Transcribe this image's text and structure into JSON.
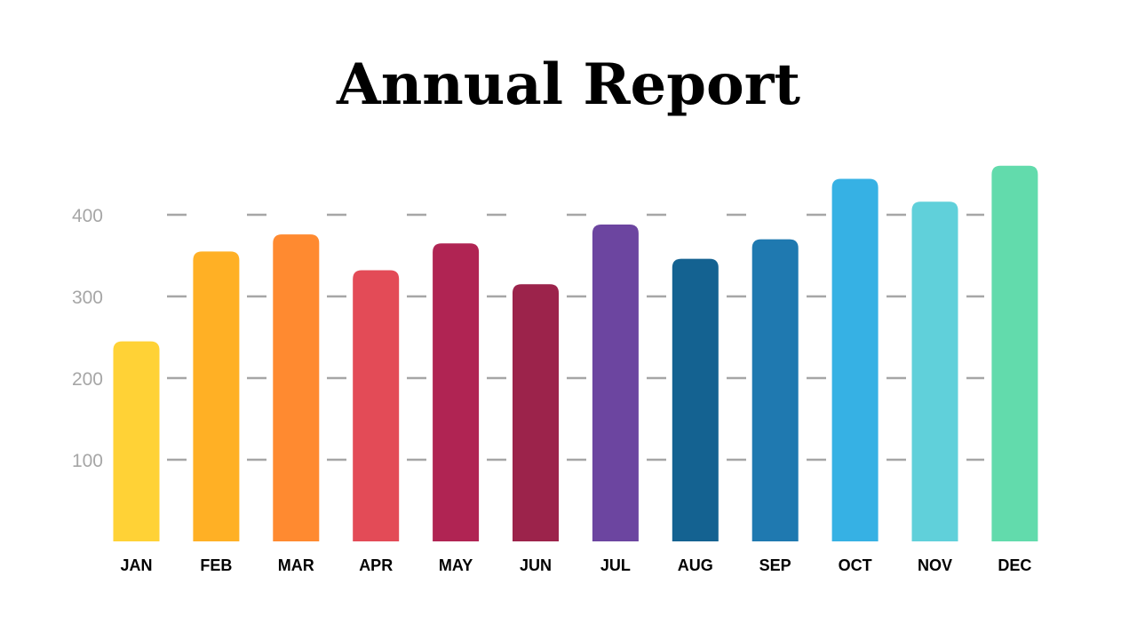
{
  "title": "Annual Report",
  "chart_data": {
    "type": "bar",
    "title": "Annual Report",
    "xlabel": "",
    "ylabel": "",
    "categories": [
      "JAN",
      "FEB",
      "MAR",
      "APR",
      "MAY",
      "JUN",
      "JUL",
      "AUG",
      "SEP",
      "OCT",
      "NOV",
      "DEC"
    ],
    "values": [
      245,
      355,
      376,
      332,
      365,
      315,
      388,
      346,
      370,
      444,
      416,
      460
    ],
    "colors": [
      "#ffd236",
      "#ffb025",
      "#ff8a30",
      "#e34b57",
      "#b02453",
      "#9c234b",
      "#6c45a0",
      "#146291",
      "#1f79b0",
      "#36b1e4",
      "#60d0da",
      "#62dbac"
    ],
    "yticks": [
      100,
      200,
      300,
      400
    ],
    "ylim": [
      0,
      460
    ],
    "grid": "dashed-horizontal"
  }
}
